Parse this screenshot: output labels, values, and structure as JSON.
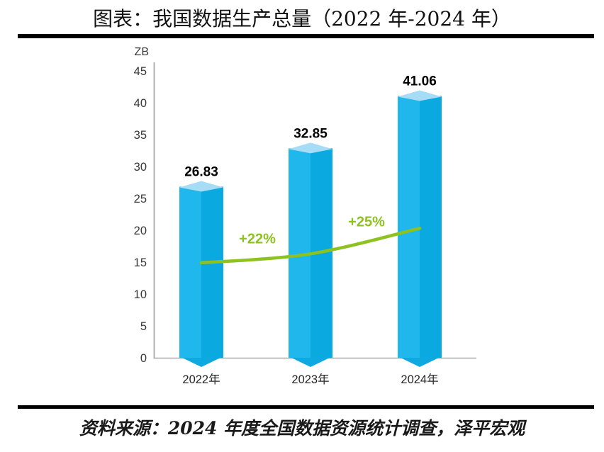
{
  "page": {
    "title": "图表：我国数据生产总量（2022 年-2024 年）",
    "source": "资料来源：2024 年度全国数据资源统计调查，泽平宏观"
  },
  "chart_data": {
    "type": "bar",
    "title": "图表：我国数据生产总量（2022 年-2024 年）",
    "unit_label": "ZB",
    "xlabel": "",
    "ylabel": "ZB",
    "categories": [
      "2022年",
      "2023年",
      "2024年"
    ],
    "values": [
      26.83,
      32.85,
      41.06
    ],
    "value_labels": [
      "26.83",
      "32.85",
      "41.06"
    ],
    "ylim": [
      0,
      45
    ],
    "ytick_step": 5,
    "grid": "off",
    "legend": "none",
    "growth_line": {
      "labels": [
        "+22%",
        "+25%"
      ],
      "points_zb": [
        14.9,
        16.3,
        20.3
      ],
      "color": "#8DC21F"
    },
    "colors": {
      "bar_front_left": "#20B7EC",
      "bar_front_right": "#0AA9E0",
      "bar_top": "#A6DCF5",
      "bar_bottom": "#0EA9E0",
      "axis": "#A9A9A9",
      "tick_text": "#383838",
      "category_text": "#262626",
      "value_text": "#000000"
    }
  }
}
